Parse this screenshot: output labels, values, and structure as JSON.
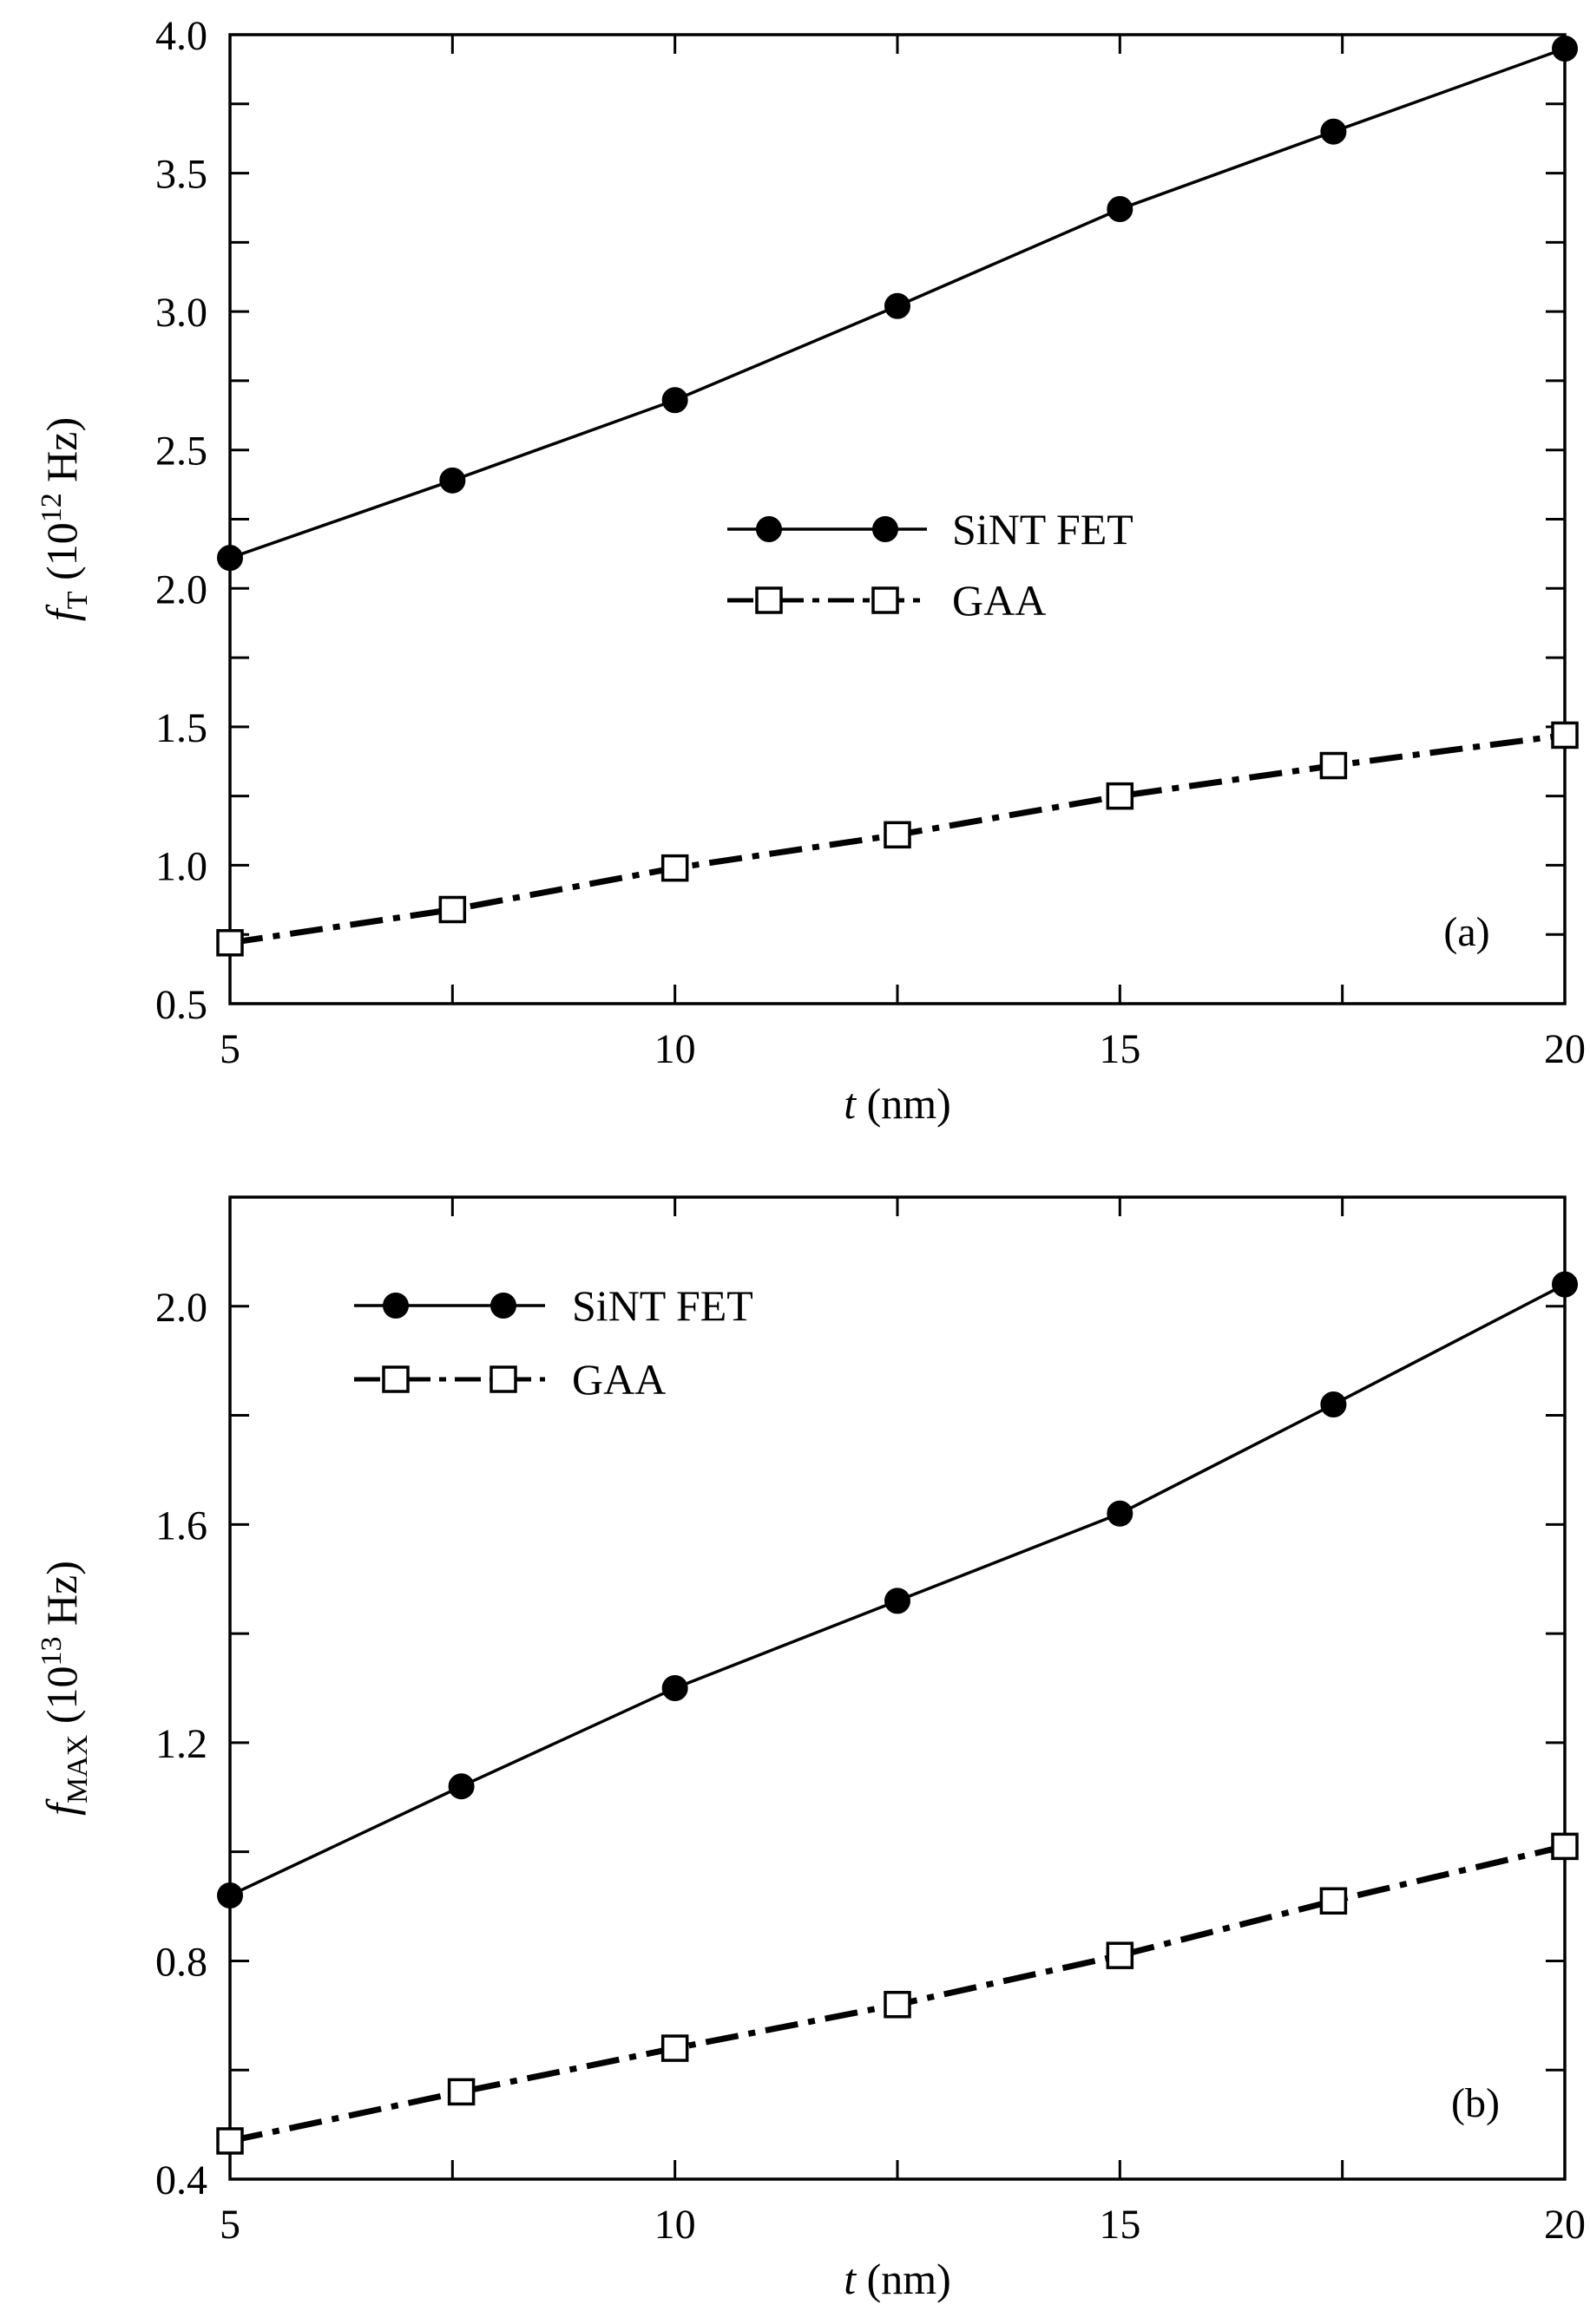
{
  "chart_data": [
    {
      "type": "line",
      "panel_label": "(a)",
      "xlabel": {
        "var": "t",
        "rest": " (nm)"
      },
      "ylabel": {
        "var": "f",
        "sub": "T",
        "pre": " (10",
        "sup": "12",
        "post": " Hz)"
      },
      "xlim": [
        5,
        20
      ],
      "ylim": [
        0.5,
        4.0
      ],
      "xticks": [
        5,
        10,
        15,
        20
      ],
      "xtick_labels": [
        "5",
        "10",
        "15",
        "20"
      ],
      "yticks": [
        0.5,
        1.0,
        1.5,
        2.0,
        2.5,
        3.0,
        3.5,
        4.0
      ],
      "ytick_labels": [
        "0.5",
        "1.0",
        "1.5",
        "2.0",
        "2.5",
        "3.0",
        "3.5",
        "4.0"
      ],
      "grid": false,
      "legend_position": "center",
      "series": [
        {
          "name": "SiNT FET",
          "marker": "filled-circle",
          "line": "solid",
          "x": [
            5,
            7.5,
            10,
            12.5,
            15,
            17.4,
            20
          ],
          "y": [
            2.11,
            2.39,
            2.68,
            3.02,
            3.37,
            3.65,
            3.95
          ]
        },
        {
          "name": "GAA",
          "marker": "open-square",
          "line": "dash-dot",
          "x": [
            5,
            7.5,
            10,
            12.5,
            15,
            17.4,
            20
          ],
          "y": [
            0.72,
            0.84,
            0.99,
            1.11,
            1.25,
            1.36,
            1.47
          ]
        }
      ]
    },
    {
      "type": "line",
      "panel_label": "(b)",
      "xlabel": {
        "var": "t",
        "rest": " (nm)"
      },
      "ylabel": {
        "var": "f",
        "sub": "MAX",
        "pre": " (10",
        "sup": "13",
        "post": " Hz)"
      },
      "xlim": [
        5,
        20
      ],
      "ylim": [
        0.4,
        2.2
      ],
      "xticks": [
        5,
        10,
        15,
        20
      ],
      "xtick_labels": [
        "5",
        "10",
        "15",
        "20"
      ],
      "yticks": [
        0.4,
        0.8,
        1.2,
        1.6,
        2.0
      ],
      "ytick_labels": [
        "0.4",
        "0.8",
        "1.2",
        "1.6",
        "2.0"
      ],
      "grid": false,
      "legend_position": "top-left",
      "series": [
        {
          "name": "SiNT FET",
          "marker": "filled-circle",
          "line": "solid",
          "x": [
            5,
            7.6,
            10,
            12.5,
            15,
            17.4,
            20
          ],
          "y": [
            0.92,
            1.12,
            1.3,
            1.46,
            1.62,
            1.82,
            2.04
          ]
        },
        {
          "name": "GAA",
          "marker": "open-square",
          "line": "dash-dot",
          "x": [
            5,
            7.6,
            10,
            12.5,
            15,
            17.4,
            20
          ],
          "y": [
            0.47,
            0.56,
            0.64,
            0.72,
            0.81,
            0.91,
            1.01
          ]
        }
      ]
    }
  ]
}
